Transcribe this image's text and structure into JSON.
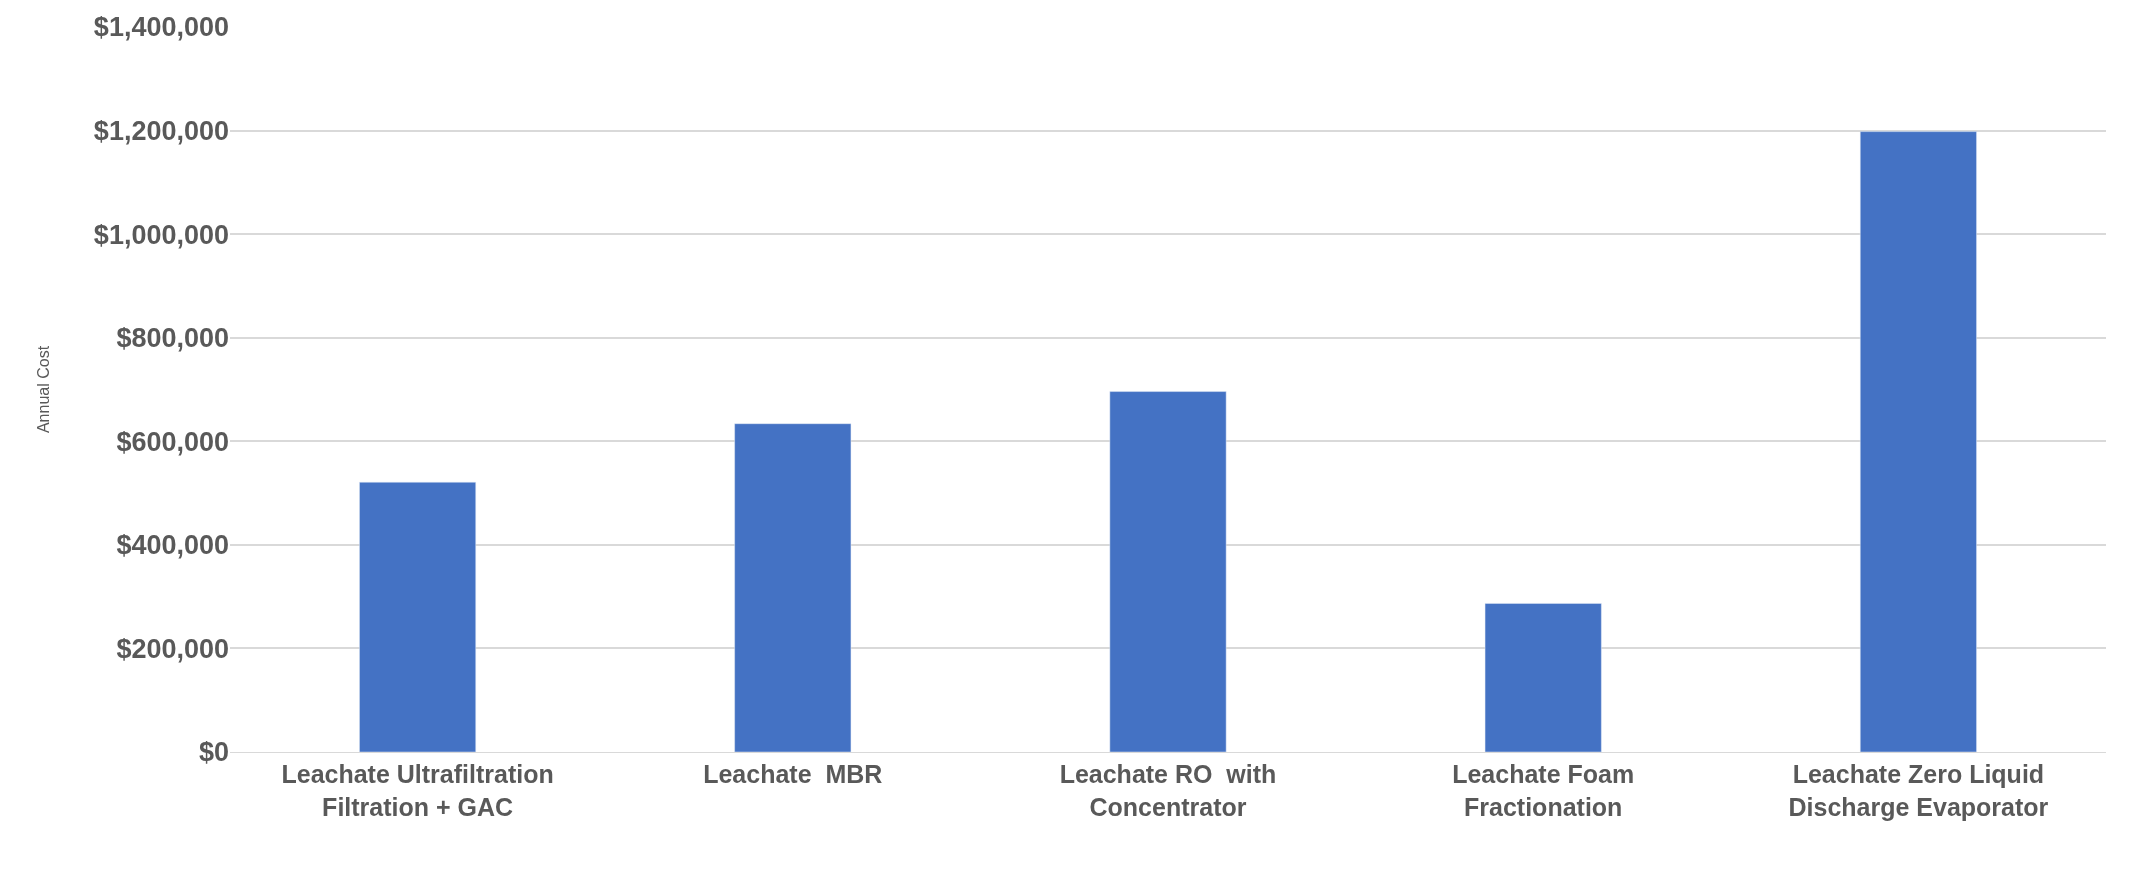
{
  "chart_data": {
    "type": "bar",
    "ylabel": "Annual Cost",
    "categories": [
      "Leachate Ultrafiltration\nFiltration + GAC",
      "Leachate  MBR",
      "Leachate RO  with\nConcentrator",
      "Leachate Foam\nFractionation",
      "Leachate Zero Liquid\nDischarge Evaporator"
    ],
    "values": [
      521000,
      634000,
      696000,
      287000,
      1198000
    ],
    "color": "#4472c4",
    "ylim": [
      0,
      1400000
    ],
    "yticks": [
      {
        "value": 0,
        "label": "$0"
      },
      {
        "value": 200000,
        "label": "$200,000"
      },
      {
        "value": 400000,
        "label": "$400,000"
      },
      {
        "value": 600000,
        "label": "$600,000"
      },
      {
        "value": 800000,
        "label": "$800,000"
      },
      {
        "value": 1000000,
        "label": "$1,000,000"
      },
      {
        "value": 1200000,
        "label": "$1,200,000"
      },
      {
        "value": 1400000,
        "label": "$1,400,000"
      }
    ],
    "grid": "y",
    "legend": false
  }
}
